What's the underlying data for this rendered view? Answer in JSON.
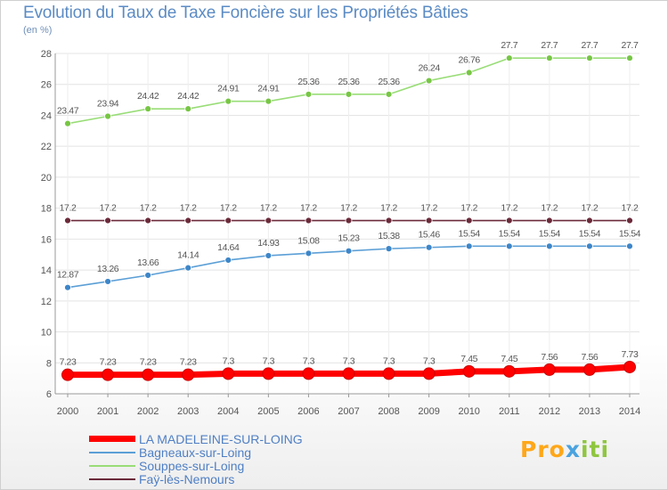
{
  "title": "Evolution du Taux de Taxe Foncière sur les Propriétés Bâties",
  "subtitle": "(en %)",
  "logo": {
    "part1": "Pro",
    "part2": "x",
    "part3": "iti"
  },
  "chart_data": {
    "type": "line",
    "title": "Evolution du Taux de Taxe Foncière sur les Propriétés Bâties",
    "ylabel": "(en %)",
    "xlabel": "",
    "x": [
      "2000",
      "2001",
      "2002",
      "2003",
      "2004",
      "2005",
      "2006",
      "2007",
      "2008",
      "2009",
      "2010",
      "2011",
      "2012",
      "2013",
      "2014"
    ],
    "ylim": [
      6,
      28
    ],
    "yticks": [
      "6",
      "8",
      "10",
      "12",
      "14",
      "16",
      "18",
      "20",
      "22",
      "24",
      "26",
      "28"
    ],
    "grid": true,
    "legend_position": "bottom-left",
    "series": [
      {
        "name": "Souppes-sur-Loing",
        "color": "#99dd77",
        "marker": "#77c644",
        "values": [
          23.47,
          23.94,
          24.42,
          24.42,
          24.91,
          24.91,
          25.36,
          25.36,
          25.36,
          26.24,
          26.76,
          27.7,
          27.7,
          27.7,
          27.7
        ],
        "labels": [
          "23.47",
          "23.94",
          "24.42",
          "24.42",
          "24.91",
          "24.91",
          "25.36",
          "25.36",
          "25.36",
          "26.24",
          "26.76",
          "27.7",
          "27.7",
          "27.7",
          "27.7"
        ]
      },
      {
        "name": "Faÿ-lès-Nemours",
        "color": "#6b2a3a",
        "marker": "#6b2a3a",
        "values": [
          17.2,
          17.2,
          17.2,
          17.2,
          17.2,
          17.2,
          17.2,
          17.2,
          17.2,
          17.2,
          17.2,
          17.2,
          17.2,
          17.2,
          17.2
        ],
        "labels": [
          "17.2",
          "17.2",
          "17.2",
          "17.2",
          "17.2",
          "17.2",
          "17.2",
          "17.2",
          "17.2",
          "17.2",
          "17.2",
          "17.2",
          "17.2",
          "17.2",
          "17.2"
        ]
      },
      {
        "name": "Bagneaux-sur-Loing",
        "color": "#5b9fd6",
        "marker": "#3d86c9",
        "values": [
          12.87,
          13.26,
          13.66,
          14.14,
          14.64,
          14.93,
          15.08,
          15.23,
          15.38,
          15.46,
          15.54,
          15.54,
          15.54,
          15.54,
          15.54
        ],
        "labels": [
          "12.87",
          "13.26",
          "13.66",
          "14.14",
          "14.64",
          "14.93",
          "15.08",
          "15.23",
          "15.38",
          "15.46",
          "15.54",
          "15.54",
          "15.54",
          "15.54",
          "15.54"
        ]
      },
      {
        "name": "LA MADELEINE-SUR-LOING",
        "color": "#ff0000",
        "marker": "#ff0000",
        "thick": true,
        "values": [
          7.23,
          7.23,
          7.23,
          7.23,
          7.3,
          7.3,
          7.3,
          7.3,
          7.3,
          7.3,
          7.45,
          7.45,
          7.56,
          7.56,
          7.73
        ],
        "labels": [
          "7.23",
          "7.23",
          "7.23",
          "7.23",
          "7.3",
          "7.3",
          "7.3",
          "7.3",
          "7.3",
          "7.3",
          "7.45",
          "7.45",
          "7.56",
          "7.56",
          "7.73"
        ]
      }
    ],
    "legend": [
      {
        "name": "LA MADELEINE-SUR-LOING",
        "color": "#ff0000",
        "thick": true
      },
      {
        "name": "Bagneaux-sur-Loing",
        "color": "#5b9fd6"
      },
      {
        "name": "Souppes-sur-Loing",
        "color": "#99dd77"
      },
      {
        "name": "Faÿ-lès-Nemours",
        "color": "#6b2a3a"
      }
    ]
  }
}
